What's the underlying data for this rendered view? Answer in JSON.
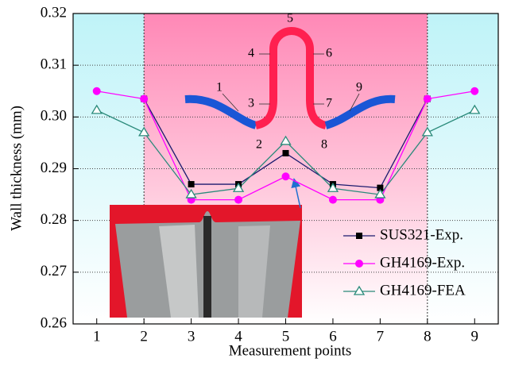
{
  "chart_data": {
    "type": "line",
    "x_label": "Measurement points",
    "y_label": "Wall thickness (mm)",
    "x": [
      1,
      2,
      3,
      4,
      5,
      6,
      7,
      8,
      9
    ],
    "xlim": [
      0.5,
      9.5
    ],
    "xticks": [
      1,
      2,
      3,
      4,
      5,
      6,
      7,
      8,
      9
    ],
    "ylim": [
      0.26,
      0.32
    ],
    "yticks": [
      0.26,
      0.27,
      0.28,
      0.29,
      {
        "value": 0.3,
        "label": "0.30"
      },
      0.31,
      0.32
    ],
    "grid": true,
    "legend": "lower right",
    "series": [
      {
        "name": "SUS321-Exp.",
        "color": "#000000",
        "line_color": "#1a1a6e",
        "marker": "square",
        "values": [
          null,
          0.3035,
          0.287,
          0.287,
          0.293,
          0.287,
          0.2863,
          0.3035,
          null
        ]
      },
      {
        "name": "GH4169-Exp.",
        "color": "#ff00ff",
        "line_color": "#ff00ff",
        "marker": "circle",
        "values": [
          0.305,
          0.3035,
          0.284,
          0.284,
          0.2885,
          0.284,
          0.284,
          0.3035,
          0.305
        ]
      },
      {
        "name": "GH4169-FEA",
        "color": "#2a8a7a",
        "line_color": "#2a8a7a",
        "marker": "triangle",
        "values": [
          0.3013,
          0.297,
          0.285,
          0.2862,
          0.2953,
          0.2862,
          0.285,
          0.297,
          0.3013
        ]
      }
    ],
    "diagram_labels": [
      "1",
      "2",
      "3",
      "4",
      "5",
      "6",
      "7",
      "8",
      "9"
    ]
  }
}
